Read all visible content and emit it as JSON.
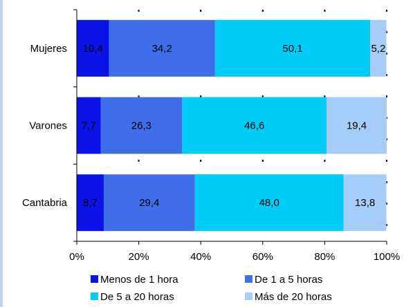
{
  "chart_data": {
    "type": "bar",
    "orientation": "horizontal",
    "stacked": true,
    "title": "(cut-off)",
    "categories": [
      "Mujeres",
      "Varones",
      "Cantabria"
    ],
    "series": [
      {
        "name": "Menos de 1 hora",
        "color": "#0a14e6",
        "values": [
          10.4,
          7.7,
          8.7
        ],
        "labels": [
          "10,4",
          "7,7",
          "8,7"
        ]
      },
      {
        "name": "De 1 a 5 horas",
        "color": "#3f6fe8",
        "values": [
          34.2,
          26.3,
          29.4
        ],
        "labels": [
          "34,2",
          "26,3",
          "29,4"
        ]
      },
      {
        "name": "De 5 a 20 horas",
        "color": "#00ccf5",
        "values": [
          50.1,
          46.6,
          48.0
        ],
        "labels": [
          "50,1",
          "46,6",
          "48,0"
        ]
      },
      {
        "name": "Más de 20 horas",
        "color": "#a6cdf7",
        "values": [
          5.2,
          19.4,
          13.8
        ],
        "labels": [
          "5,2",
          "19,4",
          "13,8"
        ]
      }
    ],
    "xlim": [
      0,
      100
    ],
    "xticks": [
      "0%",
      "20%",
      "40%",
      "60%",
      "80%",
      "100%"
    ],
    "grid": true,
    "legend_position": "bottom"
  }
}
